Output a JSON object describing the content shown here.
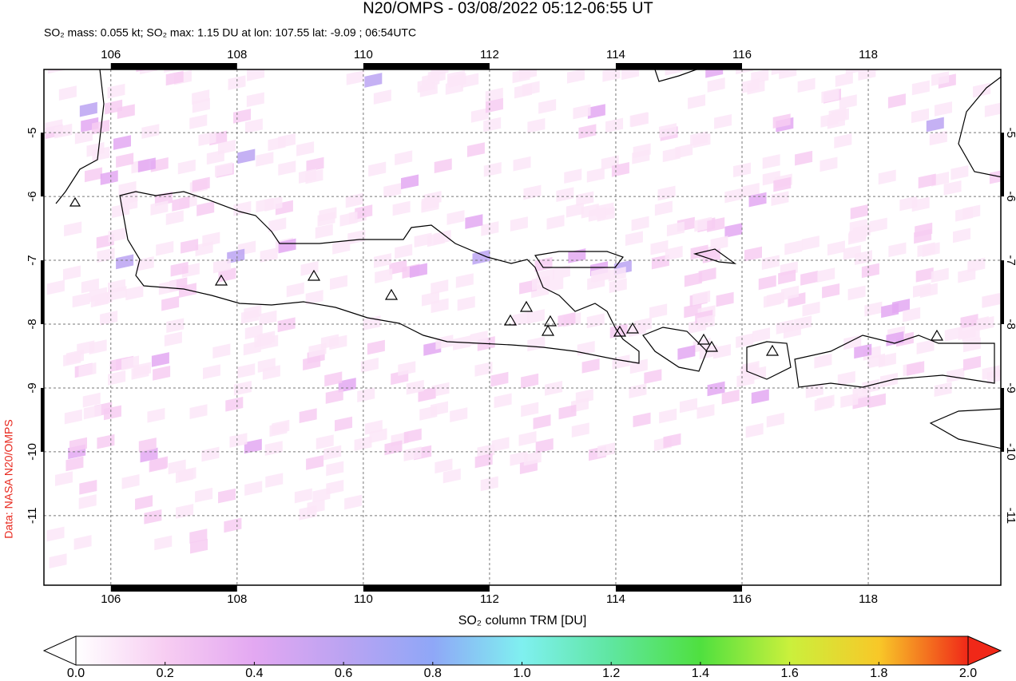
{
  "title": "N20/OMPS - 03/08/2022 05:12-06:55 UT",
  "subtitle": "SO₂ mass: 0.055 kt; SO₂ max: 1.15 DU at lon: 107.55 lat: -9.09 ; 06:54UTC",
  "credit": "Data: NASA N20/OMPS",
  "map": {
    "xlim": [
      104.94,
      120.1
    ],
    "ylim": [
      -12.09,
      -4.01
    ],
    "xticks": [
      106,
      108,
      110,
      112,
      114,
      116,
      118
    ],
    "yticks": [
      -5,
      -6,
      -7,
      -8,
      -9,
      -10,
      -11
    ]
  },
  "colorbar": {
    "label": "SO₂ column TRM [DU]",
    "xlim": [
      0,
      2
    ],
    "xticks": [
      {
        "value": 0,
        "label": "0.0"
      },
      {
        "value": 0.2,
        "label": "0.2"
      },
      {
        "value": 0.4,
        "label": "0.4"
      },
      {
        "value": 0.6,
        "label": "0.6"
      },
      {
        "value": 0.8,
        "label": "0.8"
      },
      {
        "value": 1.0,
        "label": "1.0"
      },
      {
        "value": 1.2,
        "label": "1.2"
      },
      {
        "value": 1.4,
        "label": "1.4"
      },
      {
        "value": 1.6,
        "label": "1.6"
      },
      {
        "value": 1.8,
        "label": "1.8"
      },
      {
        "value": 2.0,
        "label": "2.0"
      }
    ],
    "colors": [
      "#ffffff",
      "#f7cdf2",
      "#e3a8f2",
      "#bba3f2",
      "#8fa7f7",
      "#7ff0f0",
      "#5fe6a0",
      "#4fe03f",
      "#caf03c",
      "#f8c828",
      "#f02818"
    ]
  }
}
